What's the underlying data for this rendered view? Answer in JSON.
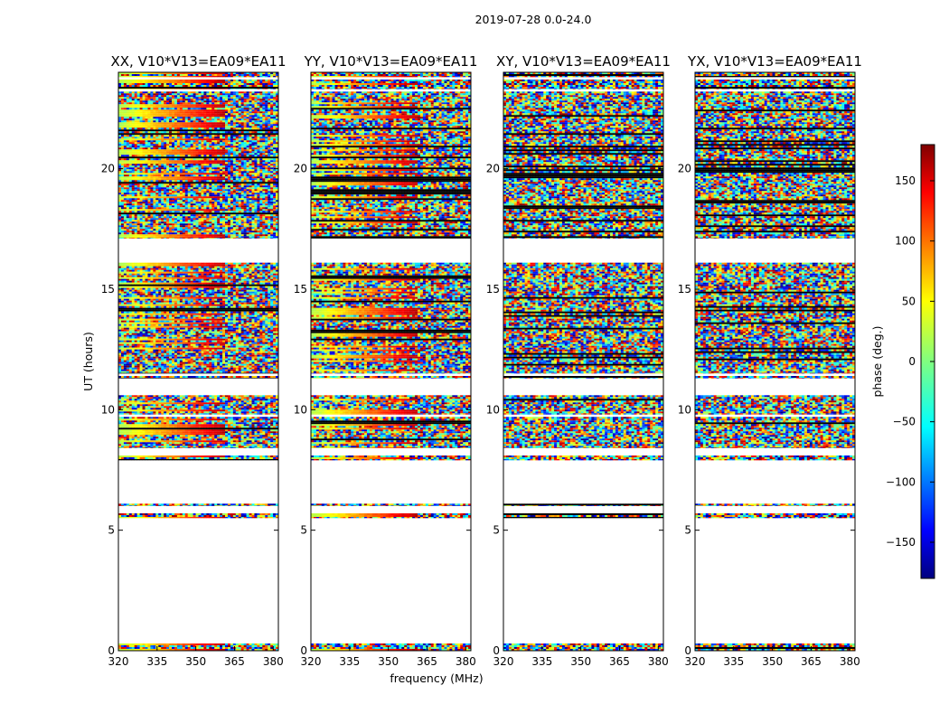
{
  "chart_data": {
    "type": "heatmap",
    "suptitle": "2019-07-28 0.0-24.0",
    "xlabel": "frequency (MHz)",
    "ylabel": "UT (hours)",
    "xlim": [
      320,
      382
    ],
    "ylim": [
      0,
      24
    ],
    "xticks": [
      320,
      335,
      350,
      365,
      380
    ],
    "yticks": [
      0,
      5,
      10,
      15,
      20
    ],
    "panels": [
      {
        "title": "XX, V10*V13=EA09*EA11",
        "kind": "parallel"
      },
      {
        "title": "YY, V10*V13=EA09*EA11",
        "kind": "parallel"
      },
      {
        "title": "XY, V10*V13=EA09*EA11",
        "kind": "cross"
      },
      {
        "title": "YX, V10*V13=EA09*EA11",
        "kind": "cross"
      }
    ],
    "data_rows_ut": [
      [
        0.0,
        0.3
      ],
      [
        5.5,
        5.7
      ],
      [
        6.0,
        6.1
      ],
      [
        7.9,
        8.1
      ],
      [
        8.4,
        9.7
      ],
      [
        9.8,
        10.6
      ],
      [
        11.3,
        11.4
      ],
      [
        11.5,
        16.1
      ],
      [
        17.1,
        23.2
      ],
      [
        23.3,
        23.7
      ],
      [
        23.8,
        24.0
      ]
    ],
    "colorbar": {
      "label": "phase (deg.)",
      "range": [
        -180,
        180
      ],
      "ticks": [
        -150,
        -100,
        -50,
        0,
        50,
        100,
        150
      ],
      "colormap": "jet"
    }
  }
}
